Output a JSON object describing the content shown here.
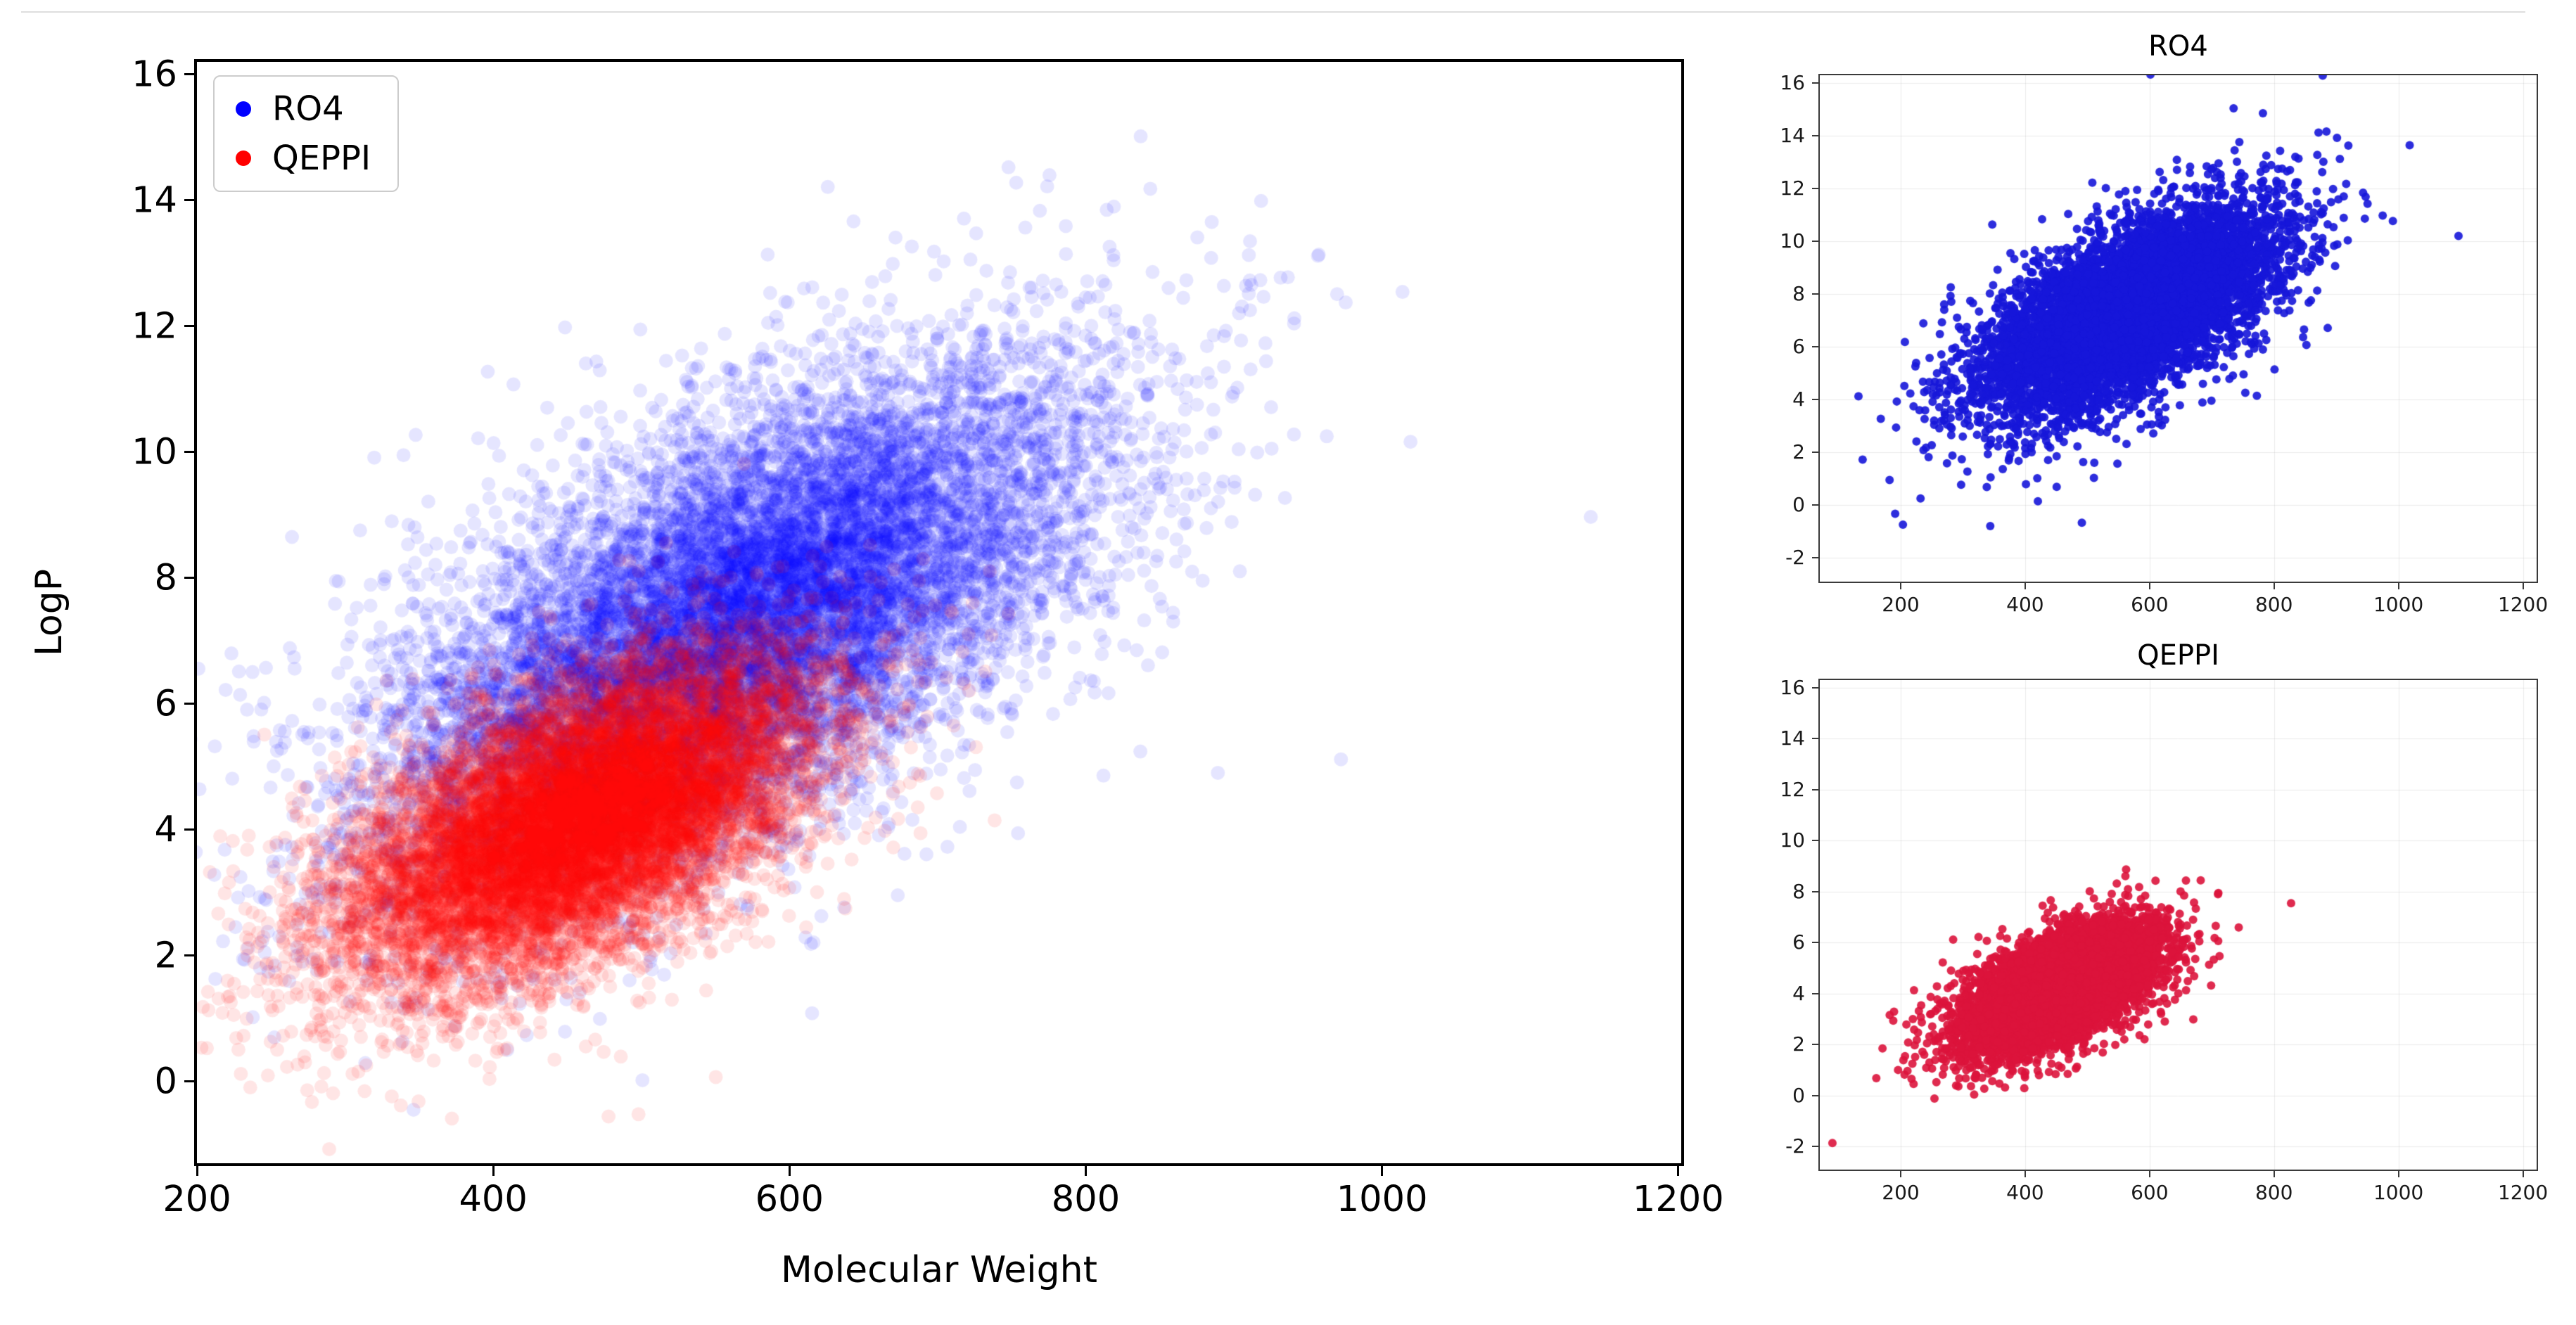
{
  "figure": {
    "background": "#ffffff",
    "divider_color": "#dedede"
  },
  "chart_data": [
    {
      "id": "main",
      "type": "scatter",
      "title": "",
      "xlabel": "Molecular Weight",
      "ylabel": "LogP",
      "xlim": [
        200,
        1202
      ],
      "ylim": [
        -1.3,
        16.2
      ],
      "xticks": [
        200,
        400,
        600,
        800,
        1000,
        1200
      ],
      "yticks": [
        0,
        2,
        4,
        6,
        8,
        10,
        12,
        14,
        16
      ],
      "grid": false,
      "legend": {
        "position": "upper-left",
        "entries": [
          "RO4",
          "QEPPI"
        ]
      },
      "series": [
        {
          "name": "RO4",
          "color": "#0000ff",
          "alpha": 0.1,
          "marker_radius": 10,
          "n": 13000,
          "mean": [
            568,
            7.35
          ],
          "std": [
            118,
            2.0
          ],
          "rho": 0.62,
          "seed": 11,
          "outliers": {
            "n": 90,
            "std_scale": 2.0
          }
        },
        {
          "name": "QEPPI",
          "color": "#ff0000",
          "alpha": 0.1,
          "marker_radius": 10,
          "n": 13000,
          "mean": [
            458,
            4.15
          ],
          "std": [
            80,
            1.28
          ],
          "rho": 0.58,
          "seed": 22,
          "outliers": {
            "n": 70,
            "std_scale": 1.8
          }
        }
      ]
    },
    {
      "id": "ro4",
      "type": "scatter",
      "title": "RO4",
      "xlabel": "",
      "ylabel": "",
      "xlim": [
        70,
        1222
      ],
      "ylim": [
        -2.9,
        16.3
      ],
      "xticks": [
        200,
        400,
        600,
        800,
        1000,
        1200
      ],
      "yticks": [
        -2,
        0,
        2,
        4,
        6,
        8,
        10,
        12,
        14,
        16
      ],
      "grid": true,
      "series": [
        {
          "name": "RO4",
          "color": "#1616d9",
          "alpha": 0.9,
          "marker_radius": 6,
          "n": 7000,
          "mean": [
            568,
            7.35
          ],
          "std": [
            118,
            2.0
          ],
          "rho": 0.62,
          "seed": 33,
          "outliers": {
            "n": 60,
            "std_scale": 2.0
          }
        }
      ]
    },
    {
      "id": "qeppi",
      "type": "scatter",
      "title": "QEPPI",
      "xlabel": "",
      "ylabel": "",
      "xlim": [
        70,
        1222
      ],
      "ylim": [
        -2.9,
        16.3
      ],
      "xticks": [
        200,
        400,
        600,
        800,
        1000,
        1200
      ],
      "yticks": [
        -2,
        0,
        2,
        4,
        6,
        8,
        10,
        12,
        14,
        16
      ],
      "grid": true,
      "series": [
        {
          "name": "QEPPI",
          "color": "#dc143c",
          "alpha": 0.9,
          "marker_radius": 6,
          "n": 7000,
          "mean": [
            455,
            4.2
          ],
          "std": [
            78,
            1.25
          ],
          "rho": 0.58,
          "seed": 44,
          "outliers": {
            "n": 45,
            "std_scale": 1.7
          }
        }
      ]
    }
  ]
}
